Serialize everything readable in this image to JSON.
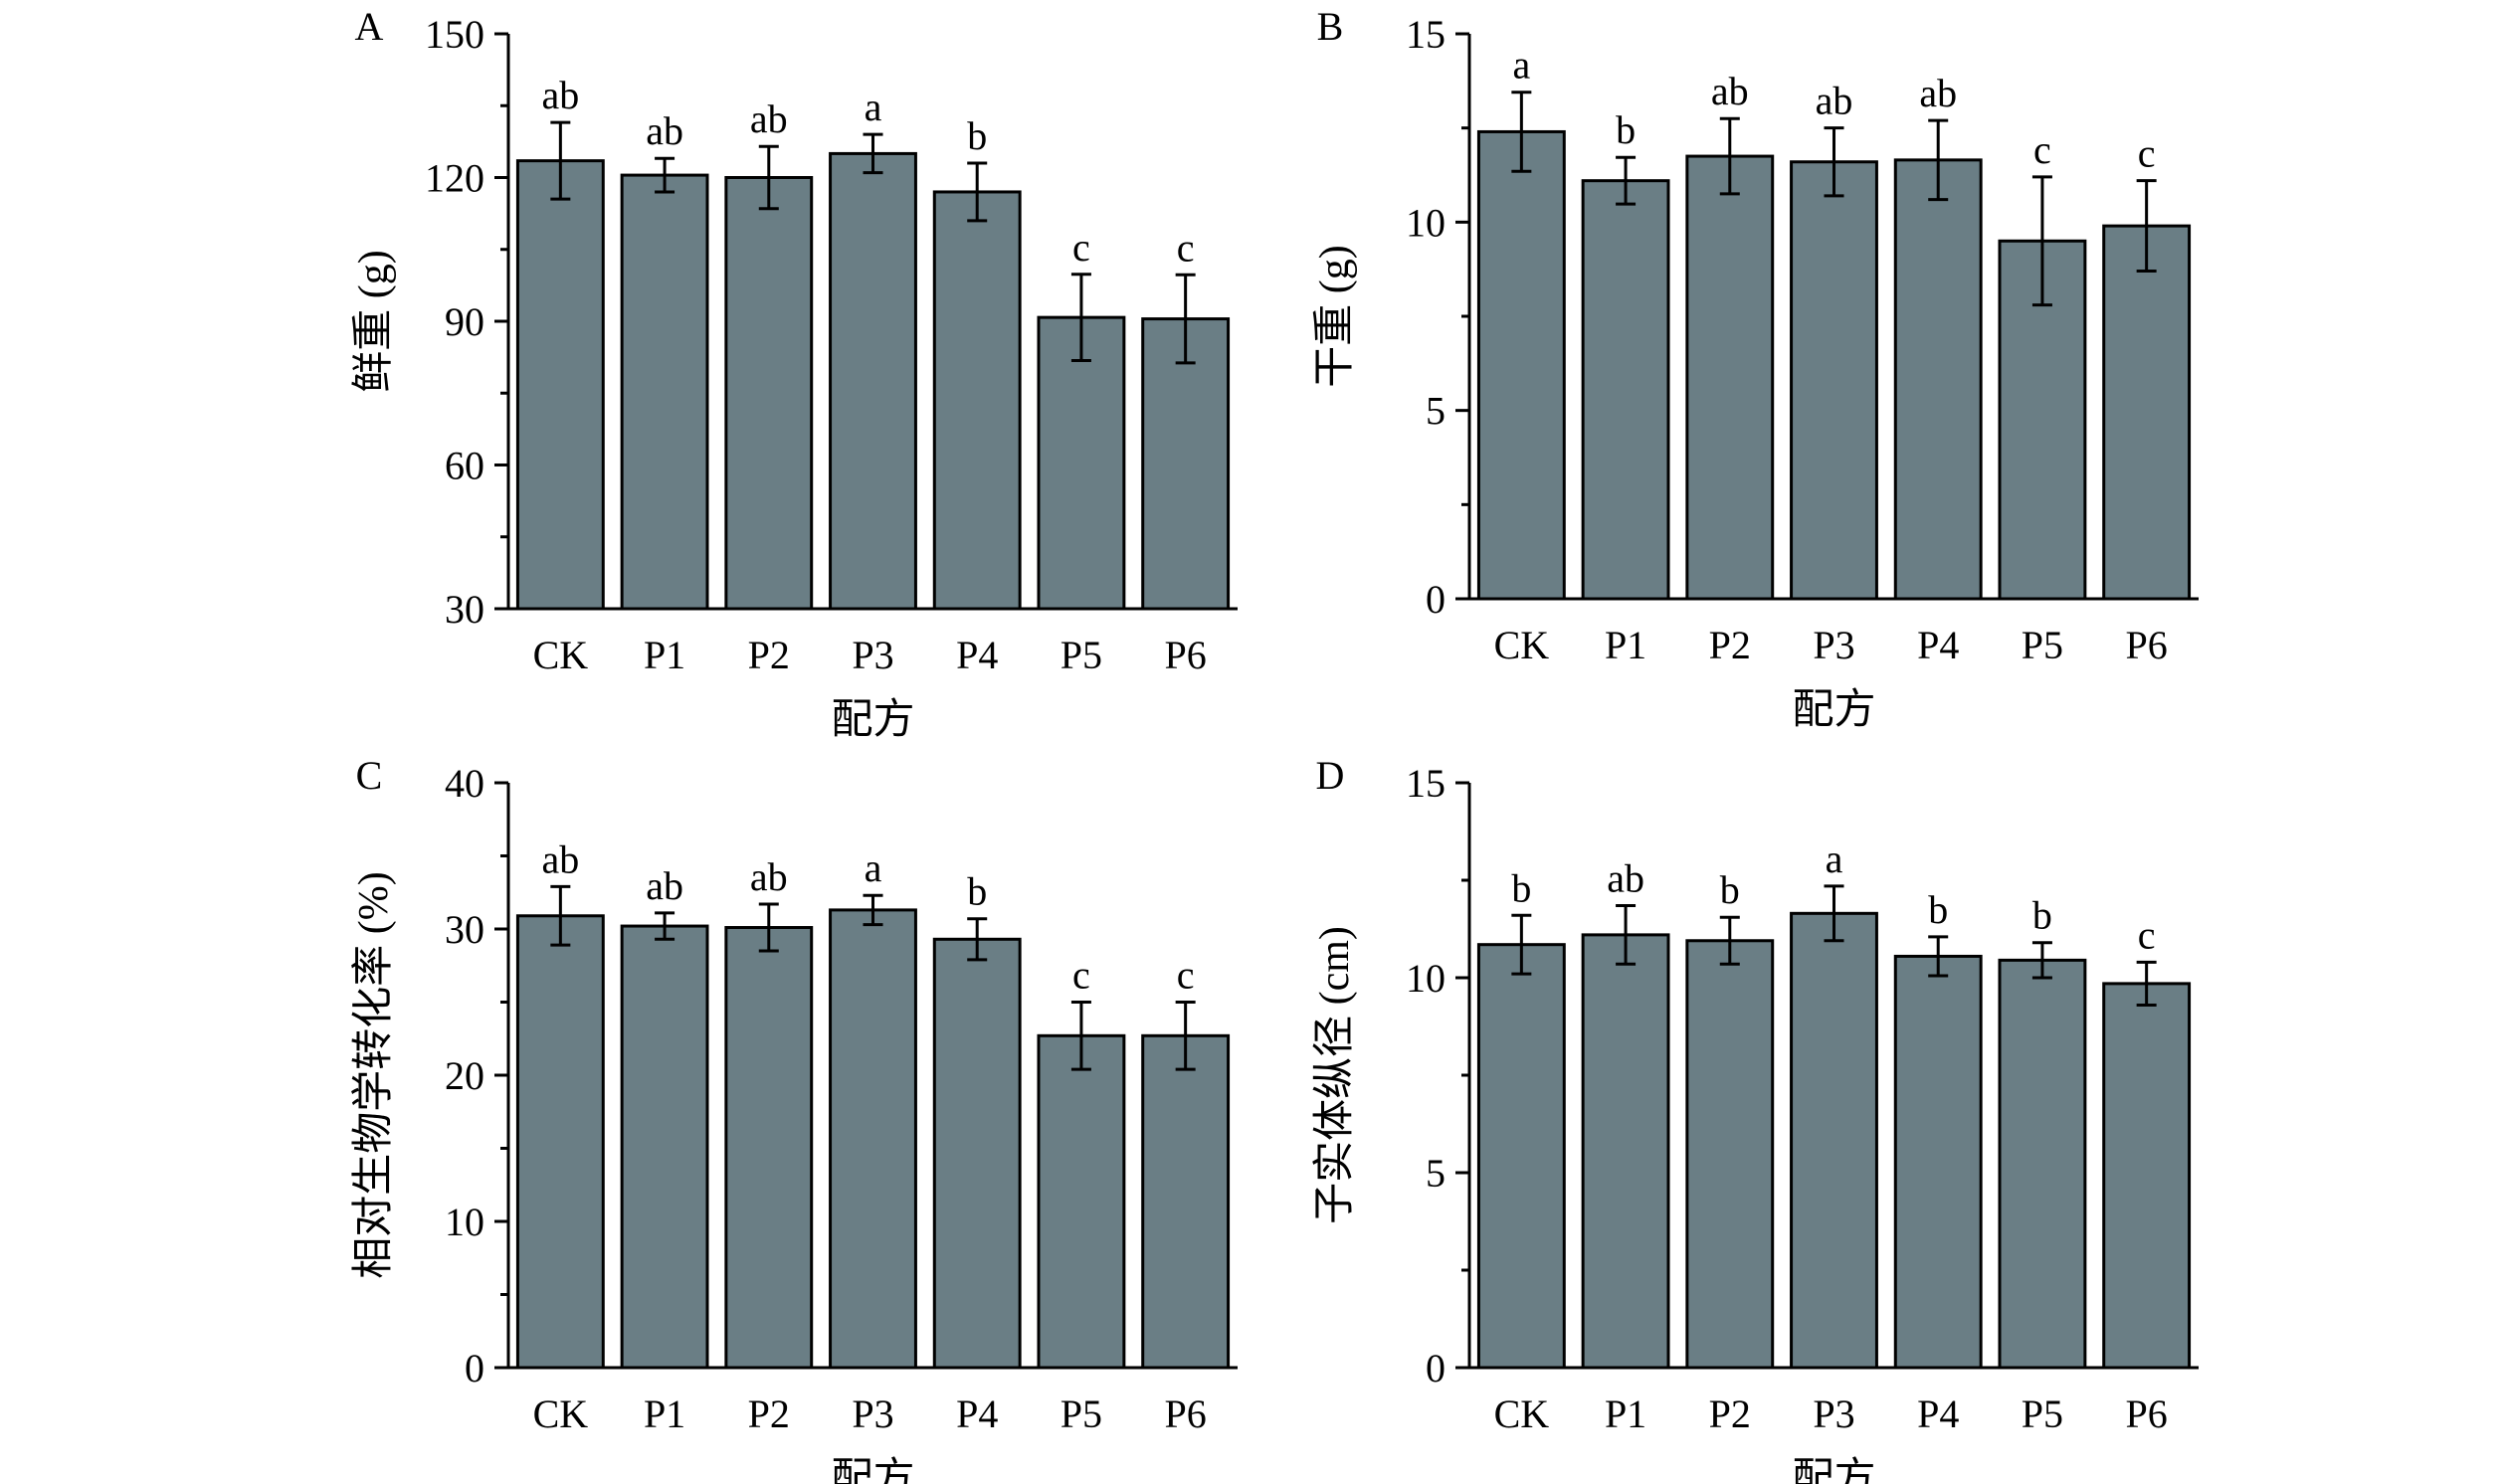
{
  "colors": {
    "bar_fill": "#6a7e85",
    "bar_stroke": "#000000",
    "axis": "#000000"
  },
  "chart_data": [
    {
      "type": "bar",
      "panel_label": "A",
      "categories": [
        "CK",
        "P1",
        "P2",
        "P3",
        "P4",
        "P5",
        "P6"
      ],
      "values": [
        123.5,
        120.5,
        120.0,
        125.0,
        117.0,
        90.8,
        90.5
      ],
      "errors": [
        8.0,
        3.5,
        6.5,
        4.0,
        6.0,
        9.0,
        9.2
      ],
      "significance": [
        "ab",
        "ab",
        "ab",
        "a",
        "b",
        "c",
        "c"
      ],
      "xlabel": "配方",
      "ylabel": "鲜重 (g)",
      "ylim": [
        30,
        150
      ],
      "yticks": [
        30,
        60,
        90,
        120,
        150
      ],
      "yminor": 15,
      "ytick_labels": [
        "30",
        "60",
        "90",
        "120",
        "150"
      ]
    },
    {
      "type": "bar",
      "panel_label": "B",
      "categories": [
        "CK",
        "P1",
        "P2",
        "P3",
        "P4",
        "P5",
        "P6"
      ],
      "values": [
        12.4,
        11.1,
        11.75,
        11.6,
        11.65,
        9.5,
        9.9
      ],
      "errors": [
        1.05,
        0.62,
        1.0,
        0.9,
        1.05,
        1.7,
        1.2
      ],
      "significance": [
        "a",
        "b",
        "ab",
        "ab",
        "ab",
        "c",
        "c"
      ],
      "xlabel": "配方",
      "ylabel": "干重 (g)",
      "ylim": [
        0,
        15
      ],
      "yticks": [
        0,
        5,
        10,
        15
      ],
      "yminor": 2.5,
      "ytick_labels": [
        "0",
        "5",
        "10",
        "15"
      ]
    },
    {
      "type": "bar",
      "panel_label": "C",
      "categories": [
        "CK",
        "P1",
        "P2",
        "P3",
        "P4",
        "P5",
        "P6"
      ],
      "values": [
        30.9,
        30.2,
        30.1,
        31.3,
        29.3,
        22.7,
        22.7
      ],
      "errors": [
        2.0,
        0.9,
        1.6,
        1.0,
        1.4,
        2.3,
        2.3
      ],
      "significance": [
        "ab",
        "ab",
        "ab",
        "a",
        "b",
        "c",
        "c"
      ],
      "xlabel": "配方",
      "ylabel": "相对生物学转化率 (%)",
      "ylim": [
        0,
        40
      ],
      "yticks": [
        0,
        10,
        20,
        30,
        40
      ],
      "yminor": 5,
      "ytick_labels": [
        "0",
        "10",
        "20",
        "30",
        "40"
      ]
    },
    {
      "type": "bar",
      "panel_label": "D",
      "categories": [
        "CK",
        "P1",
        "P2",
        "P3",
        "P4",
        "P5",
        "P6"
      ],
      "values": [
        10.85,
        11.1,
        10.95,
        11.65,
        10.55,
        10.45,
        9.85
      ],
      "errors": [
        0.75,
        0.75,
        0.6,
        0.7,
        0.5,
        0.45,
        0.55
      ],
      "significance": [
        "b",
        "ab",
        "b",
        "a",
        "b",
        "b",
        "c"
      ],
      "xlabel": "配方",
      "ylabel": "子实体纵径 (cm)",
      "ylim": [
        0,
        15
      ],
      "yticks": [
        0,
        5,
        10,
        15
      ],
      "yminor": 2.5,
      "ytick_labels": [
        "0",
        "5",
        "10",
        "15"
      ]
    }
  ]
}
